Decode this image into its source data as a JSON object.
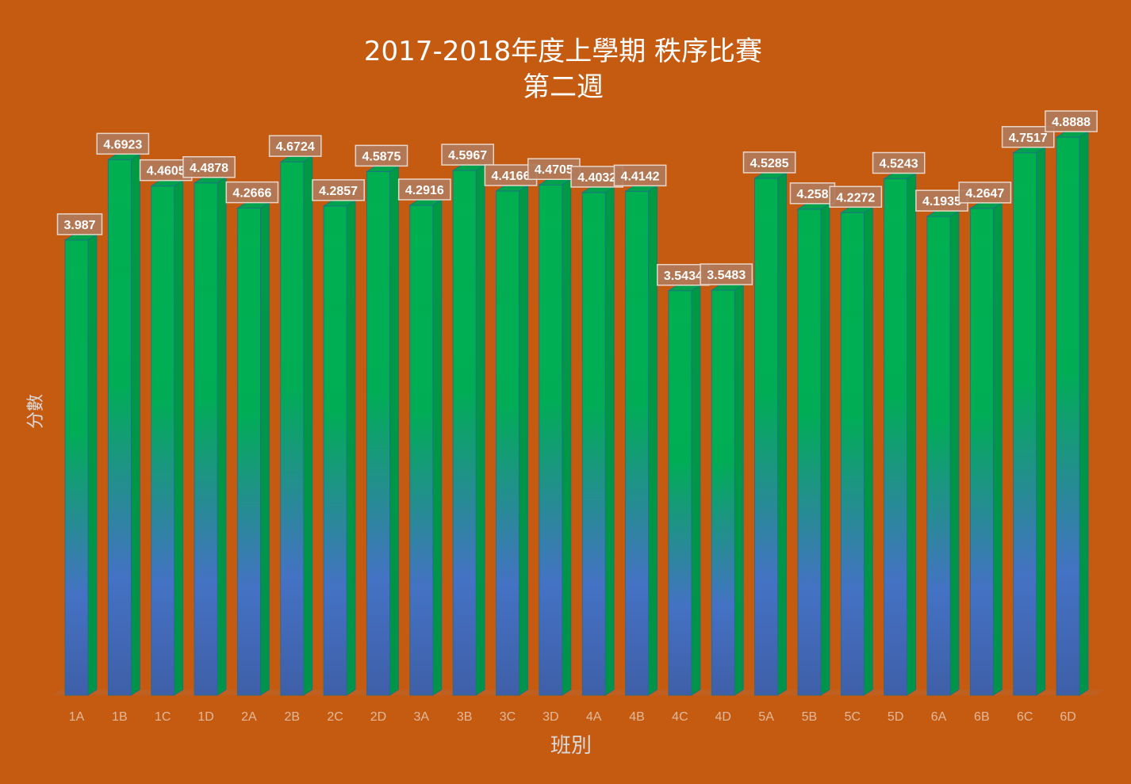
{
  "colors": {
    "background": "#c55a11",
    "bar_top": "#00b050",
    "bar_bottom": "#4472c4",
    "bar_side": "#009a45",
    "bar_cap": "#00b050",
    "label_box": "#b07a5c",
    "label_border": "#e9d6c9",
    "label_text": "#ffffff",
    "tick_text": "#e2b99a"
  },
  "chart_data": {
    "type": "bar",
    "title": [
      "2017-2018年度上學期 秩序比賽",
      "第二週"
    ],
    "xlabel": "班別",
    "ylabel": "分數",
    "ylim": [
      0,
      5
    ],
    "grid": false,
    "legend": "none",
    "categories": [
      "1A",
      "1B",
      "1C",
      "1D",
      "2A",
      "2B",
      "2C",
      "2D",
      "3A",
      "3B",
      "3C",
      "3D",
      "4A",
      "4B",
      "4C",
      "4D",
      "5A",
      "5B",
      "5C",
      "5D",
      "6A",
      "6B",
      "6C",
      "6D"
    ],
    "values": [
      3.987,
      4.6923,
      4.4605,
      4.4878,
      4.2666,
      4.6724,
      4.2857,
      4.5875,
      4.2916,
      4.5967,
      4.4166,
      4.4705,
      4.4032,
      4.4142,
      3.5434,
      3.5483,
      4.5285,
      4.258,
      4.2272,
      4.5243,
      4.1935,
      4.2647,
      4.7517,
      4.8888
    ],
    "data_labels": [
      "3.987",
      "4.6923",
      "4.4605",
      "4.4878",
      "4.2666",
      "4.6724",
      "4.2857",
      "4.5875",
      "4.2916",
      "4.5967",
      "4.4166",
      "4.4705",
      "4.4032",
      "4.4142",
      "3.5434",
      "3.5483",
      "4.5285",
      "4.258",
      "4.2272",
      "4.5243",
      "4.1935",
      "4.2647",
      "4.7517",
      "4.8888"
    ]
  }
}
